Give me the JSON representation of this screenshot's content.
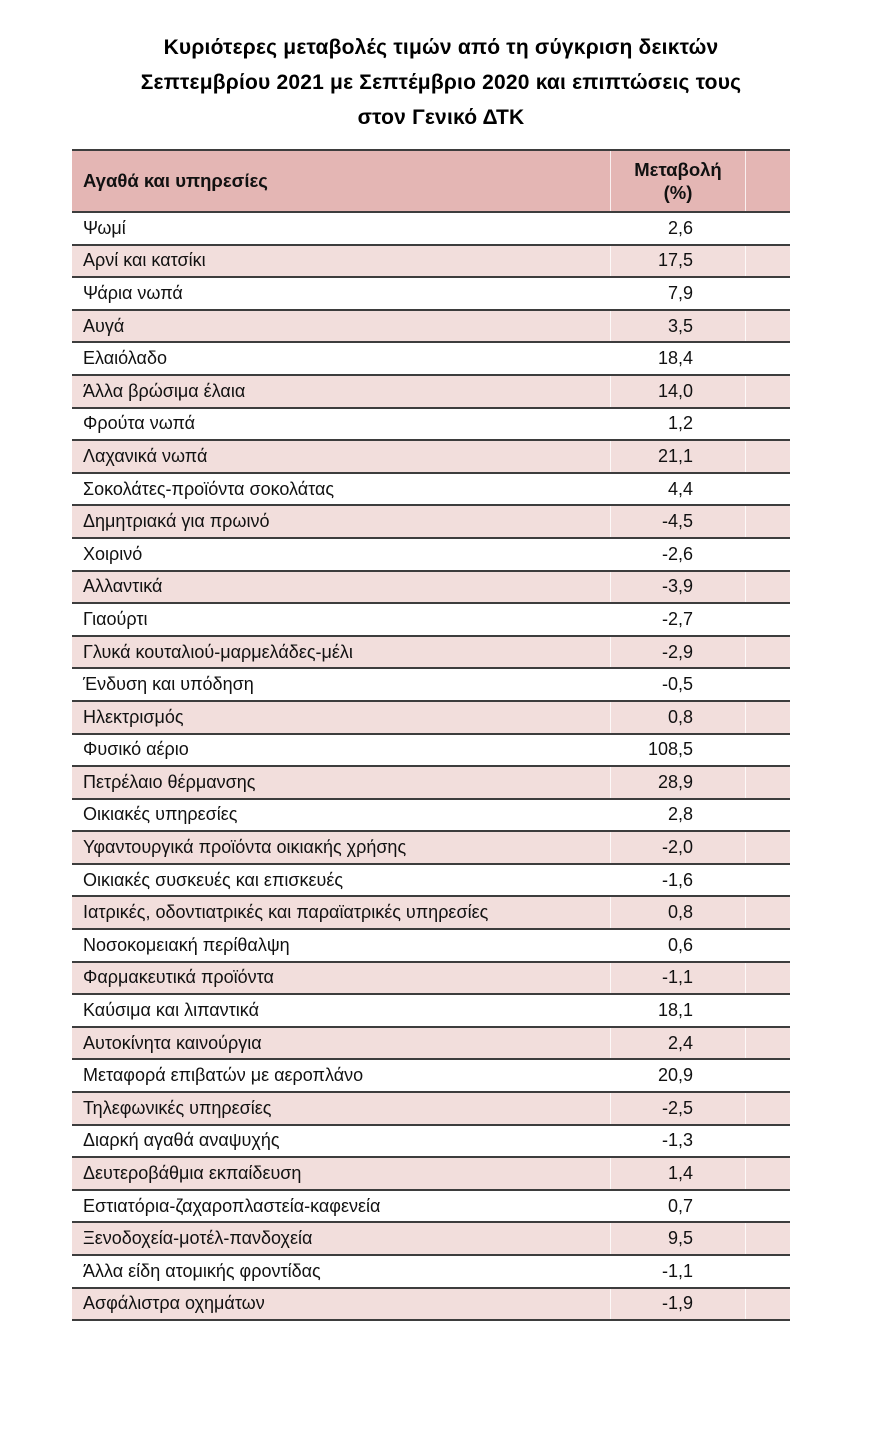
{
  "title": {
    "line1": "Κυριότερες μεταβολές τιμών από τη σύγκριση δεικτών",
    "line2": "Σεπτεμβρίου 2021 με Σεπτέμβριο 2020 και επιπτώσεις τους",
    "line3": "στον Γενικό ΔΤΚ"
  },
  "table": {
    "header": {
      "items_label": "Αγαθά και υπηρεσίες",
      "change_label": "Μεταβολή",
      "change_unit": "(%)"
    },
    "rows": [
      {
        "label": "Ψωμί",
        "value": "2,6"
      },
      {
        "label": "Αρνί και κατσίκι",
        "value": "17,5"
      },
      {
        "label": "Ψάρια νωπά",
        "value": "7,9"
      },
      {
        "label": "Αυγά",
        "value": "3,5"
      },
      {
        "label": "Ελαιόλαδο",
        "value": "18,4"
      },
      {
        "label": "Άλλα βρώσιμα έλαια",
        "value": "14,0"
      },
      {
        "label": "Φρούτα νωπά",
        "value": "1,2"
      },
      {
        "label": "Λαχανικά νωπά",
        "value": "21,1"
      },
      {
        "label": "Σοκολάτες-προϊόντα σοκολάτας",
        "value": "4,4"
      },
      {
        "label": "Δημητριακά για πρωινό",
        "value": "-4,5"
      },
      {
        "label": "Χοιρινό",
        "value": "-2,6"
      },
      {
        "label": "Αλλαντικά",
        "value": "-3,9"
      },
      {
        "label": "Γιαούρτι",
        "value": "-2,7"
      },
      {
        "label": "Γλυκά κουταλιού-μαρμελάδες-μέλι",
        "value": "-2,9"
      },
      {
        "label": "Ένδυση και υπόδηση",
        "value": "-0,5"
      },
      {
        "label": "Ηλεκτρισμός",
        "value": "0,8"
      },
      {
        "label": "Φυσικό αέριο",
        "value": "108,5"
      },
      {
        "label": "Πετρέλαιο θέρμανσης",
        "value": "28,9"
      },
      {
        "label": "Οικιακές υπηρεσίες",
        "value": "2,8"
      },
      {
        "label": "Υφαντουργικά προϊόντα οικιακής χρήσης",
        "value": "-2,0"
      },
      {
        "label": "Οικιακές συσκευές και επισκευές",
        "value": "-1,6"
      },
      {
        "label": "Ιατρικές, οδοντιατρικές και παραϊατρικές υπηρεσίες",
        "value": "0,8"
      },
      {
        "label": "Νοσοκομειακή περίθαλψη",
        "value": "0,6"
      },
      {
        "label": "Φαρμακευτικά προϊόντα",
        "value": "-1,1"
      },
      {
        "label": "Καύσιμα και λιπαντικά",
        "value": "18,1"
      },
      {
        "label": "Αυτοκίνητα καινούργια",
        "value": "2,4"
      },
      {
        "label": "Μεταφορά επιβατών με αεροπλάνο",
        "value": "20,9"
      },
      {
        "label": "Τηλεφωνικές υπηρεσίες",
        "value": "-2,5"
      },
      {
        "label": "Διαρκή αγαθά αναψυχής",
        "value": "-1,3"
      },
      {
        "label": "Δευτεροβάθμια εκπαίδευση",
        "value": "1,4"
      },
      {
        "label": "Εστιατόρια-ζαχαροπλαστεία-καφενεία",
        "value": "0,7"
      },
      {
        "label": "Ξενοδοχεία-μοτέλ-πανδοχεία",
        "value": "9,5"
      },
      {
        "label": "Άλλα είδη ατομικής φροντίδας",
        "value": "-1,1"
      },
      {
        "label": "Ασφάλιστρα οχημάτων",
        "value": "-1,9"
      }
    ]
  },
  "colors": {
    "header_bg": "#e4b6b4",
    "row_alt_bg": "#f2dedc",
    "border": "#3d3d3d"
  }
}
